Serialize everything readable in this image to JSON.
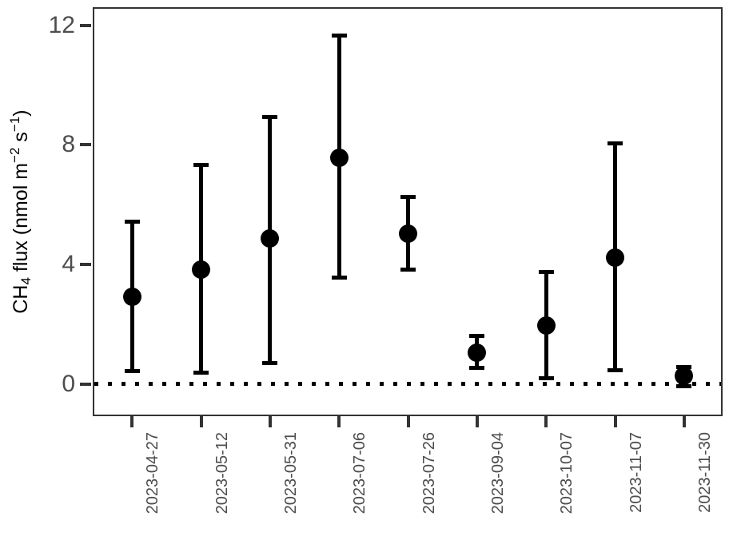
{
  "chart_data": {
    "type": "scatter",
    "title": "",
    "xlabel": "",
    "ylabel": "CH4 flux (nmol m-2 s-1)",
    "ylabel_parts": [
      {
        "text": "CH"
      },
      {
        "sub": "4"
      },
      {
        "text": " flux (nmol m"
      },
      {
        "sup": "−2"
      },
      {
        "text": " s"
      },
      {
        "sup": "−1"
      },
      {
        "text": ")"
      }
    ],
    "categories": [
      "2023-04-27",
      "2023-05-12",
      "2023-05-31",
      "2023-07-06",
      "2023-07-26",
      "2023-09-04",
      "2023-10-07",
      "2023-11-07",
      "2023-11-30"
    ],
    "series": [
      {
        "name": "CH4 flux",
        "values": [
          2.93,
          3.84,
          4.86,
          7.57,
          5.03,
          1.06,
          1.95,
          4.24,
          0.27
        ],
        "error_low": [
          0.44,
          0.37,
          0.7,
          3.57,
          3.84,
          0.53,
          0.2,
          0.47,
          -0.06
        ],
        "error_high": [
          5.43,
          7.34,
          8.94,
          11.66,
          6.25,
          1.62,
          3.75,
          8.05,
          0.58
        ]
      }
    ],
    "y_ticks": [
      0,
      4,
      8,
      12
    ],
    "ylim": [
      -1.02,
      12.55
    ],
    "reference_line": {
      "y": 0,
      "style": "dotted",
      "color": "#000000"
    },
    "grid": false,
    "legend_position": "none",
    "point_color": "#000000",
    "errorbar_color": "#000000",
    "axis_text_color": "#4d4d4d",
    "axis_title_color": "#000000",
    "panel_border_color": "#333333"
  }
}
